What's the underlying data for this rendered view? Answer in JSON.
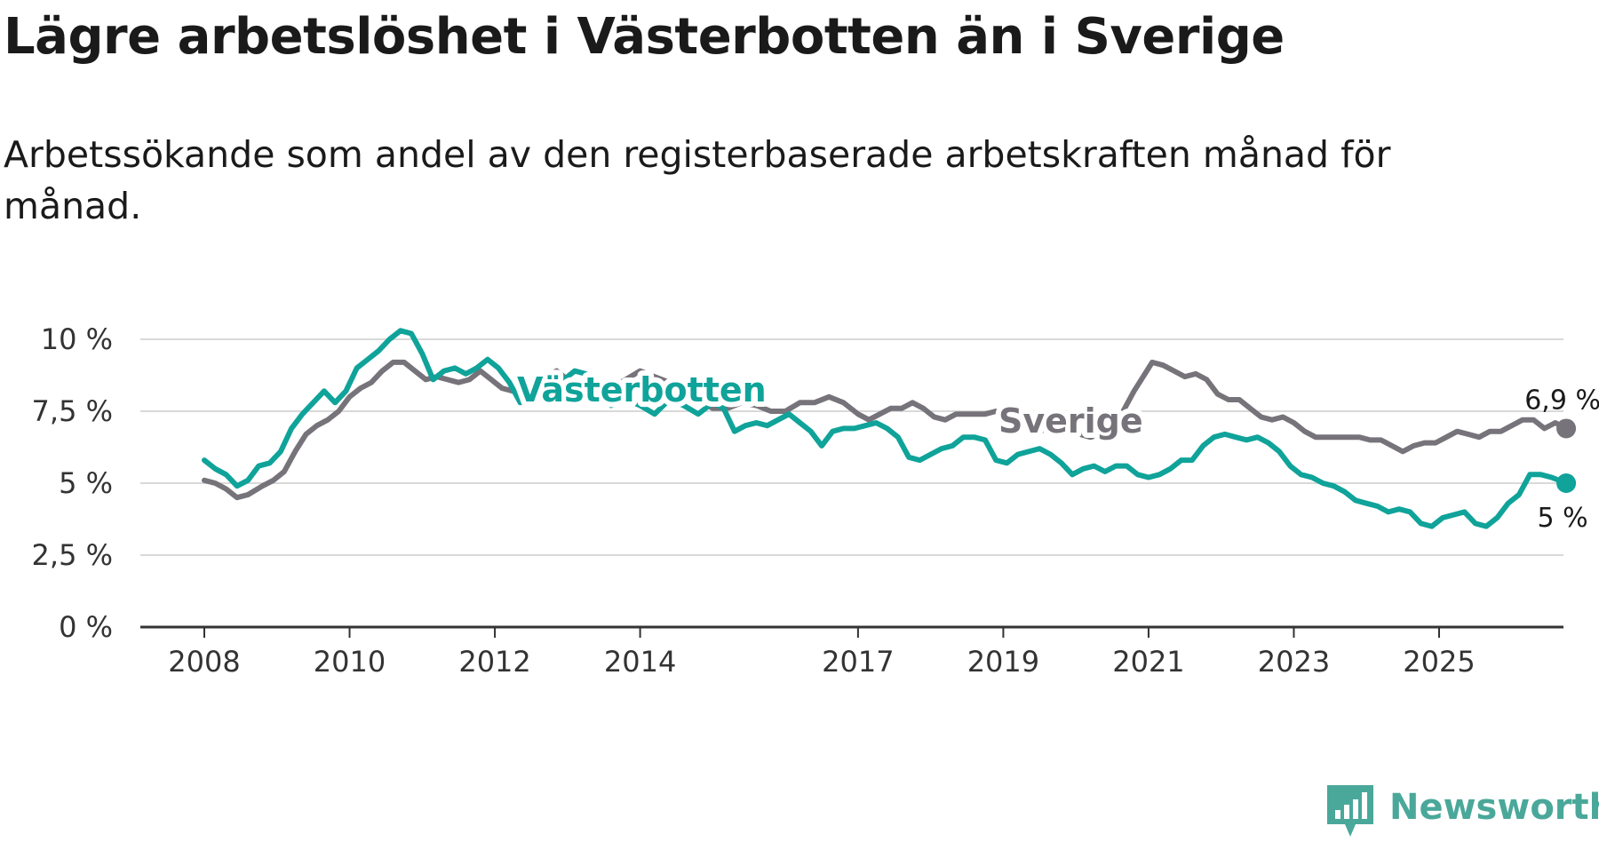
{
  "title": "Lägre arbetslöshet i Västerbotten än i Sverige",
  "subtitle": "Arbetssökande som andel av den registerbaserade arbetskraften månad för månad.",
  "brand": {
    "name": "Newsworthy",
    "icon": "newsworthy-logo-icon"
  },
  "colors": {
    "vasterbotten": "#0fa39a",
    "sverige": "#77737a",
    "grid": "#d9d9d9",
    "axis": "#333333"
  },
  "chart_data": {
    "type": "line",
    "title": "Lägre arbetslöshet i Västerbotten än i Sverige",
    "ylim": [
      0,
      10
    ],
    "xlim": [
      2008,
      2026.8
    ],
    "yticks": [
      {
        "value": 0,
        "label": "0 %"
      },
      {
        "value": 2.5,
        "label": "2,5 %"
      },
      {
        "value": 5,
        "label": "5 %"
      },
      {
        "value": 7.5,
        "label": "7,5 %"
      },
      {
        "value": 10,
        "label": "10 %"
      }
    ],
    "xticks": [
      {
        "value": 2008,
        "label": "2008"
      },
      {
        "value": 2010,
        "label": "2010"
      },
      {
        "value": 2012,
        "label": "2012"
      },
      {
        "value": 2014,
        "label": "2014"
      },
      {
        "value": 2017,
        "label": "2017"
      },
      {
        "value": 2019,
        "label": "2019"
      },
      {
        "value": 2021,
        "label": "2021"
      },
      {
        "value": 2023,
        "label": "2023"
      },
      {
        "value": 2025,
        "label": "2025"
      }
    ],
    "series": [
      {
        "name": "Sverige",
        "label": "Sverige",
        "end_label": "6,9 %",
        "points": [
          [
            2008.0,
            5.1
          ],
          [
            2008.15,
            5.0
          ],
          [
            2008.3,
            4.8
          ],
          [
            2008.45,
            4.5
          ],
          [
            2008.6,
            4.6
          ],
          [
            2008.8,
            4.9
          ],
          [
            2008.95,
            5.1
          ],
          [
            2009.1,
            5.4
          ],
          [
            2009.25,
            6.1
          ],
          [
            2009.4,
            6.7
          ],
          [
            2009.55,
            7.0
          ],
          [
            2009.7,
            7.2
          ],
          [
            2009.85,
            7.5
          ],
          [
            2010.0,
            8.0
          ],
          [
            2010.15,
            8.3
          ],
          [
            2010.3,
            8.5
          ],
          [
            2010.45,
            8.9
          ],
          [
            2010.6,
            9.2
          ],
          [
            2010.75,
            9.2
          ],
          [
            2010.9,
            8.9
          ],
          [
            2011.05,
            8.6
          ],
          [
            2011.2,
            8.7
          ],
          [
            2011.35,
            8.6
          ],
          [
            2011.5,
            8.5
          ],
          [
            2011.65,
            8.6
          ],
          [
            2011.8,
            8.9
          ],
          [
            2011.95,
            8.6
          ],
          [
            2012.1,
            8.3
          ],
          [
            2012.25,
            8.2
          ],
          [
            2012.4,
            8.2
          ],
          [
            2012.55,
            8.4
          ],
          [
            2012.7,
            8.7
          ],
          [
            2012.85,
            8.9
          ],
          [
            2013.0,
            8.6
          ],
          [
            2013.2,
            8.3
          ],
          [
            2013.4,
            8.1
          ],
          [
            2013.6,
            8.3
          ],
          [
            2013.8,
            8.6
          ],
          [
            2014.0,
            8.9
          ],
          [
            2014.2,
            8.7
          ],
          [
            2014.4,
            8.5
          ],
          [
            2014.6,
            8.2
          ],
          [
            2014.8,
            7.9
          ],
          [
            2015.0,
            7.6
          ],
          [
            2015.2,
            7.6
          ],
          [
            2015.4,
            7.8
          ],
          [
            2015.6,
            7.7
          ],
          [
            2015.8,
            7.5
          ],
          [
            2016.0,
            7.5
          ],
          [
            2016.2,
            7.8
          ],
          [
            2016.4,
            7.8
          ],
          [
            2016.6,
            8.0
          ],
          [
            2016.8,
            7.8
          ],
          [
            2017.0,
            7.4
          ],
          [
            2017.15,
            7.2
          ],
          [
            2017.3,
            7.4
          ],
          [
            2017.45,
            7.6
          ],
          [
            2017.6,
            7.6
          ],
          [
            2017.75,
            7.8
          ],
          [
            2017.9,
            7.6
          ],
          [
            2018.05,
            7.3
          ],
          [
            2018.2,
            7.2
          ],
          [
            2018.35,
            7.4
          ],
          [
            2018.55,
            7.4
          ],
          [
            2018.75,
            7.4
          ],
          [
            2018.9,
            7.5
          ],
          [
            2019.05,
            7.4
          ],
          [
            2019.2,
            7.1
          ],
          [
            2019.35,
            6.9
          ],
          [
            2019.5,
            6.8
          ],
          [
            2019.7,
            7.0
          ],
          [
            2019.9,
            6.9
          ],
          [
            2020.05,
            6.7
          ],
          [
            2020.2,
            6.6
          ],
          [
            2020.35,
            6.7
          ],
          [
            2020.5,
            7.0
          ],
          [
            2020.65,
            7.5
          ],
          [
            2020.8,
            8.2
          ],
          [
            2020.95,
            8.8
          ],
          [
            2021.05,
            9.2
          ],
          [
            2021.2,
            9.1
          ],
          [
            2021.35,
            8.9
          ],
          [
            2021.5,
            8.7
          ],
          [
            2021.65,
            8.8
          ],
          [
            2021.8,
            8.6
          ],
          [
            2021.95,
            8.1
          ],
          [
            2022.1,
            7.9
          ],
          [
            2022.25,
            7.9
          ],
          [
            2022.4,
            7.6
          ],
          [
            2022.55,
            7.3
          ],
          [
            2022.7,
            7.2
          ],
          [
            2022.85,
            7.3
          ],
          [
            2023.0,
            7.1
          ],
          [
            2023.15,
            6.8
          ],
          [
            2023.3,
            6.6
          ],
          [
            2023.45,
            6.6
          ],
          [
            2023.6,
            6.6
          ],
          [
            2023.75,
            6.6
          ],
          [
            2023.9,
            6.6
          ],
          [
            2024.05,
            6.5
          ],
          [
            2024.2,
            6.5
          ],
          [
            2024.35,
            6.3
          ],
          [
            2024.5,
            6.1
          ],
          [
            2024.65,
            6.3
          ],
          [
            2024.8,
            6.4
          ],
          [
            2024.95,
            6.4
          ],
          [
            2025.1,
            6.6
          ],
          [
            2025.25,
            6.8
          ],
          [
            2025.4,
            6.7
          ],
          [
            2025.55,
            6.6
          ],
          [
            2025.7,
            6.8
          ],
          [
            2025.85,
            6.8
          ],
          [
            2026.0,
            7.0
          ],
          [
            2026.15,
            7.2
          ],
          [
            2026.3,
            7.2
          ],
          [
            2026.45,
            6.9
          ],
          [
            2026.6,
            7.1
          ],
          [
            2026.75,
            6.9
          ]
        ]
      },
      {
        "name": "Västerbotten",
        "label": "Västerbotten",
        "end_label": "5 %",
        "points": [
          [
            2008.0,
            5.8
          ],
          [
            2008.15,
            5.5
          ],
          [
            2008.3,
            5.3
          ],
          [
            2008.45,
            4.9
          ],
          [
            2008.6,
            5.1
          ],
          [
            2008.75,
            5.6
          ],
          [
            2008.9,
            5.7
          ],
          [
            2009.05,
            6.1
          ],
          [
            2009.2,
            6.9
          ],
          [
            2009.35,
            7.4
          ],
          [
            2009.5,
            7.8
          ],
          [
            2009.65,
            8.2
          ],
          [
            2009.8,
            7.8
          ],
          [
            2009.95,
            8.2
          ],
          [
            2010.1,
            9.0
          ],
          [
            2010.25,
            9.3
          ],
          [
            2010.4,
            9.6
          ],
          [
            2010.55,
            10.0
          ],
          [
            2010.7,
            10.3
          ],
          [
            2010.85,
            10.2
          ],
          [
            2011.0,
            9.5
          ],
          [
            2011.15,
            8.6
          ],
          [
            2011.3,
            8.9
          ],
          [
            2011.45,
            9.0
          ],
          [
            2011.6,
            8.8
          ],
          [
            2011.75,
            9.0
          ],
          [
            2011.9,
            9.3
          ],
          [
            2012.05,
            9.0
          ],
          [
            2012.2,
            8.5
          ],
          [
            2012.35,
            7.8
          ],
          [
            2012.5,
            8.1
          ],
          [
            2012.65,
            8.5
          ],
          [
            2012.8,
            8.4
          ],
          [
            2012.95,
            8.6
          ],
          [
            2013.1,
            8.9
          ],
          [
            2013.25,
            8.8
          ],
          [
            2013.4,
            8.2
          ],
          [
            2013.6,
            7.7
          ],
          [
            2013.8,
            7.9
          ],
          [
            2014.0,
            7.7
          ],
          [
            2014.2,
            7.4
          ],
          [
            2014.4,
            7.9
          ],
          [
            2014.6,
            7.7
          ],
          [
            2014.8,
            7.4
          ],
          [
            2015.0,
            7.8
          ],
          [
            2015.15,
            7.6
          ],
          [
            2015.3,
            6.8
          ],
          [
            2015.45,
            7.0
          ],
          [
            2015.6,
            7.1
          ],
          [
            2015.75,
            7.0
          ],
          [
            2015.9,
            7.2
          ],
          [
            2016.05,
            7.4
          ],
          [
            2016.2,
            7.1
          ],
          [
            2016.35,
            6.8
          ],
          [
            2016.5,
            6.3
          ],
          [
            2016.65,
            6.8
          ],
          [
            2016.8,
            6.9
          ],
          [
            2016.95,
            6.9
          ],
          [
            2017.1,
            7.0
          ],
          [
            2017.25,
            7.1
          ],
          [
            2017.4,
            6.9
          ],
          [
            2017.55,
            6.6
          ],
          [
            2017.7,
            5.9
          ],
          [
            2017.85,
            5.8
          ],
          [
            2018.0,
            6.0
          ],
          [
            2018.15,
            6.2
          ],
          [
            2018.3,
            6.3
          ],
          [
            2018.45,
            6.6
          ],
          [
            2018.6,
            6.6
          ],
          [
            2018.75,
            6.5
          ],
          [
            2018.9,
            5.8
          ],
          [
            2019.05,
            5.7
          ],
          [
            2019.2,
            6.0
          ],
          [
            2019.35,
            6.1
          ],
          [
            2019.5,
            6.2
          ],
          [
            2019.65,
            6.0
          ],
          [
            2019.8,
            5.7
          ],
          [
            2019.95,
            5.3
          ],
          [
            2020.1,
            5.5
          ],
          [
            2020.25,
            5.6
          ],
          [
            2020.4,
            5.4
          ],
          [
            2020.55,
            5.6
          ],
          [
            2020.7,
            5.6
          ],
          [
            2020.85,
            5.3
          ],
          [
            2021.0,
            5.2
          ],
          [
            2021.15,
            5.3
          ],
          [
            2021.3,
            5.5
          ],
          [
            2021.45,
            5.8
          ],
          [
            2021.6,
            5.8
          ],
          [
            2021.75,
            6.3
          ],
          [
            2021.9,
            6.6
          ],
          [
            2022.05,
            6.7
          ],
          [
            2022.2,
            6.6
          ],
          [
            2022.35,
            6.5
          ],
          [
            2022.5,
            6.6
          ],
          [
            2022.65,
            6.4
          ],
          [
            2022.8,
            6.1
          ],
          [
            2022.95,
            5.6
          ],
          [
            2023.1,
            5.3
          ],
          [
            2023.25,
            5.2
          ],
          [
            2023.4,
            5.0
          ],
          [
            2023.55,
            4.9
          ],
          [
            2023.7,
            4.7
          ],
          [
            2023.85,
            4.4
          ],
          [
            2024.0,
            4.3
          ],
          [
            2024.15,
            4.2
          ],
          [
            2024.3,
            4.0
          ],
          [
            2024.45,
            4.1
          ],
          [
            2024.6,
            4.0
          ],
          [
            2024.75,
            3.6
          ],
          [
            2024.9,
            3.5
          ],
          [
            2025.05,
            3.8
          ],
          [
            2025.2,
            3.9
          ],
          [
            2025.35,
            4.0
          ],
          [
            2025.5,
            3.6
          ],
          [
            2025.65,
            3.5
          ],
          [
            2025.8,
            3.8
          ],
          [
            2025.95,
            4.3
          ],
          [
            2026.1,
            4.6
          ],
          [
            2026.25,
            5.3
          ],
          [
            2026.4,
            5.3
          ],
          [
            2026.55,
            5.2
          ],
          [
            2026.75,
            5.0
          ]
        ]
      }
    ]
  }
}
